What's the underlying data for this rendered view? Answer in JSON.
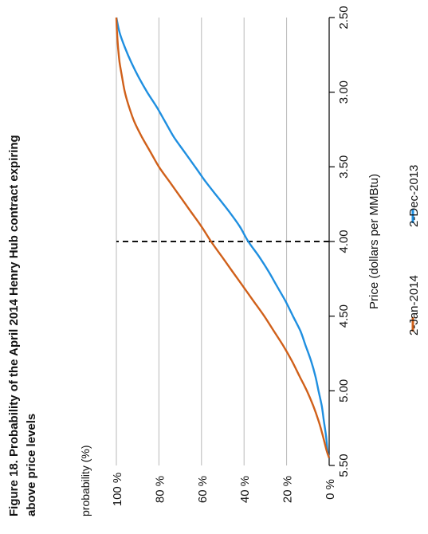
{
  "chart_data": {
    "type": "line",
    "title": "Figure 18. Probability of the April 2014 Henry Hub contract expiring above price levels",
    "title_lines": [
      "Figure 18. Probability of the April 2014 Henry Hub contract expiring",
      "above price levels"
    ],
    "xlabel": "Price (dollars per MMBtu)",
    "ylabel": "probability (%)",
    "xlim": [
      2.5,
      5.5
    ],
    "ylim": [
      0,
      100
    ],
    "x_ticks": [
      "2.50",
      "3.00",
      "3.50",
      "4.00",
      "4.50",
      "5.00",
      "5.50"
    ],
    "x_tick_values": [
      2.5,
      3.0,
      3.5,
      4.0,
      4.5,
      5.0,
      5.5
    ],
    "y_ticks": [
      "0 %",
      "20 %",
      "40 %",
      "60 %",
      "80 %",
      "100 %"
    ],
    "y_tick_values": [
      0,
      20,
      40,
      60,
      80,
      100
    ],
    "grid": "horizontal",
    "reference_line": {
      "x": 4.0,
      "style": "dashed"
    },
    "legend_position": "bottom",
    "series": [
      {
        "name": "2-Dec-2013",
        "color": "#1f8fe0",
        "x": [
          2.5,
          2.6,
          2.7,
          2.8,
          2.9,
          3.0,
          3.1,
          3.2,
          3.3,
          3.4,
          3.5,
          3.6,
          3.7,
          3.8,
          3.9,
          4.0,
          4.1,
          4.2,
          4.3,
          4.4,
          4.5,
          4.6,
          4.7,
          4.8,
          4.9,
          5.0,
          5.1,
          5.2,
          5.3,
          5.4,
          5.45
        ],
        "values": [
          100,
          98.5,
          96,
          93,
          89.5,
          85.5,
          81,
          77,
          73,
          68,
          63,
          58,
          52.5,
          47,
          42,
          38,
          33,
          28.5,
          24.5,
          20.5,
          17,
          13.5,
          11,
          8.5,
          6.5,
          5,
          3.5,
          2.5,
          1.5,
          0.8,
          0
        ]
      },
      {
        "name": "2-Jan-2014",
        "color": "#d0601a",
        "x": [
          2.5,
          2.6,
          2.7,
          2.8,
          2.9,
          3.0,
          3.1,
          3.2,
          3.3,
          3.4,
          3.5,
          3.6,
          3.7,
          3.8,
          3.9,
          4.0,
          4.1,
          4.2,
          4.3,
          4.4,
          4.5,
          4.6,
          4.7,
          4.8,
          4.9,
          5.0,
          5.1,
          5.2,
          5.3,
          5.4,
          5.45
        ],
        "values": [
          100,
          99.7,
          99.2,
          98.5,
          97.3,
          96,
          94,
          91.5,
          88,
          84,
          80,
          75,
          70,
          65,
          60,
          55.5,
          50.5,
          45.5,
          40.5,
          35.5,
          30.5,
          26,
          21.5,
          17.5,
          14,
          10.5,
          7.5,
          5,
          3,
          1.2,
          0
        ]
      }
    ]
  }
}
